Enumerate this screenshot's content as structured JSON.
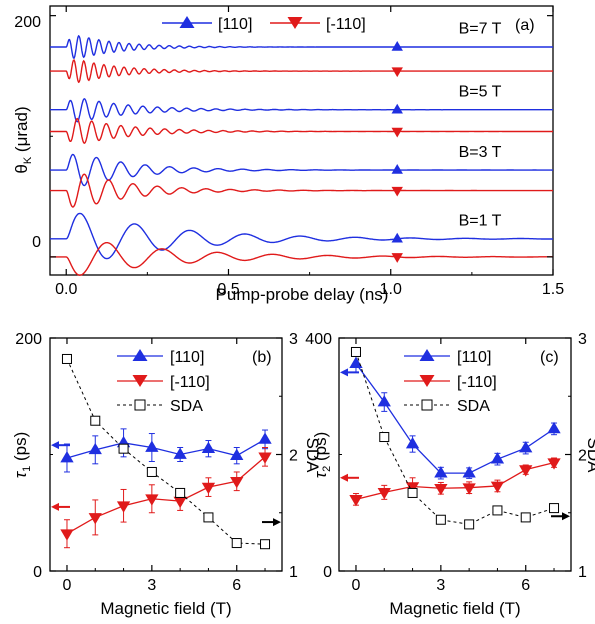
{
  "colors": {
    "blue": "#1f2fe0",
    "red": "#e01a1a",
    "black": "#000000"
  },
  "chart_data": [
    {
      "panel": "(a)",
      "type": "line",
      "xlabel": "Pump-probe delay (ns)",
      "ylabel": "θK (μrad)",
      "ylabel_main": "θ",
      "ylabel_sub": "K",
      "ylabel_unit": " (μrad)",
      "xlim": [
        -0.05,
        1.5
      ],
      "ylim": [
        -15,
        208
      ],
      "xticks": [
        0.0,
        0.5,
        1.0,
        1.5
      ],
      "xtick_labels": [
        "0.0",
        "0.5",
        "1.0",
        "1.5"
      ],
      "yticks": [
        0,
        200
      ],
      "ytick_labels": [
        "0",
        "200"
      ],
      "legend": [
        {
          "label": "[110]",
          "color": "#1f2fe0",
          "marker": "triangle-up"
        },
        {
          "label": "[-110]",
          "color": "#e01a1a",
          "marker": "triangle-down"
        }
      ],
      "traces": [
        {
          "field": "B=7 T",
          "period_ns": 0.031,
          "decay_ns": 0.13,
          "blue": {
            "offset": 174,
            "amp": 13
          },
          "red": {
            "offset": 154,
            "amp": 13
          },
          "label_y": 190
        },
        {
          "field": "B=5 T",
          "period_ns": 0.045,
          "decay_ns": 0.16,
          "blue": {
            "offset": 122,
            "amp": 13
          },
          "red": {
            "offset": 104,
            "amp": 14
          },
          "label_y": 138
        },
        {
          "field": "B=3 T",
          "period_ns": 0.075,
          "decay_ns": 0.17,
          "blue": {
            "offset": 72,
            "amp": 18
          },
          "red": {
            "offset": 55,
            "amp": 19
          },
          "label_y": 88
        },
        {
          "field": "B=1 T",
          "period_ns": 0.17,
          "decay_ns": 0.3,
          "blue": {
            "offset": 15,
            "amp": 25
          },
          "red": {
            "offset": 0,
            "amp": 18
          },
          "label_y": 31
        }
      ],
      "marker_x": 1.02
    },
    {
      "panel": "(b)",
      "type": "line",
      "xlabel": "Magnetic field (T)",
      "ylabel": "τ1 (ps)",
      "ylabel_main": "τ",
      "ylabel_sub": "1",
      "ylabel_unit": " (ps)",
      "y2label": "SDA",
      "xlim": [
        -0.6,
        7.6
      ],
      "ylim": [
        0,
        200
      ],
      "y2lim": [
        1,
        3
      ],
      "xticks": [
        0,
        3,
        6
      ],
      "yticks": [
        0,
        200
      ],
      "y2ticks": [
        1,
        2,
        3
      ],
      "x": [
        0,
        1,
        2,
        3,
        4,
        5,
        6,
        7
      ],
      "series": [
        {
          "name": "[110]",
          "axis": "left",
          "color": "#1f2fe0",
          "marker": "triangle-up",
          "values": [
            97,
            104,
            110,
            106,
            100,
            105,
            99,
            113
          ],
          "errors": [
            12,
            12,
            12,
            12,
            6,
            7,
            7,
            8
          ]
        },
        {
          "name": "[-110]",
          "axis": "left",
          "color": "#e01a1a",
          "marker": "triangle-down",
          "values": [
            32,
            46,
            56,
            62,
            60,
            72,
            77,
            98
          ],
          "errors": [
            12,
            15,
            14,
            12,
            8,
            8,
            8,
            8
          ]
        },
        {
          "name": "SDA",
          "axis": "right",
          "color": "#000000",
          "marker": "open-square",
          "dashed": true,
          "values": [
            2.82,
            2.29,
            2.05,
            1.85,
            1.67,
            1.46,
            1.24,
            1.23
          ]
        }
      ],
      "arrows": [
        {
          "axis": "left",
          "y": 108,
          "color": "#1f2fe0",
          "dir": "left"
        },
        {
          "axis": "left",
          "y": 55,
          "color": "#e01a1a",
          "dir": "left"
        },
        {
          "axis": "right",
          "y": 1.42,
          "color": "#000000",
          "dir": "right"
        }
      ]
    },
    {
      "panel": "(c)",
      "type": "line",
      "xlabel": "Magnetic field (T)",
      "ylabel": "τ2 (ps)",
      "ylabel_main": "τ",
      "ylabel_sub": "2",
      "ylabel_unit": " (ps)",
      "y2label": "SDA",
      "xlim": [
        -0.6,
        7.6
      ],
      "ylim": [
        0,
        400
      ],
      "y2lim": [
        1,
        3
      ],
      "xticks": [
        0,
        3,
        6
      ],
      "yticks": [
        0,
        400
      ],
      "y2ticks": [
        1,
        2,
        3
      ],
      "x": [
        0,
        1,
        2,
        3,
        4,
        5,
        6,
        7
      ],
      "series": [
        {
          "name": "[110]",
          "axis": "left",
          "color": "#1f2fe0",
          "marker": "triangle-up",
          "values": [
            356,
            290,
            218,
            168,
            168,
            192,
            211,
            244
          ],
          "errors": [
            15,
            16,
            14,
            10,
            9,
            10,
            10,
            10
          ]
        },
        {
          "name": "[-110]",
          "axis": "left",
          "color": "#e01a1a",
          "marker": "triangle-down",
          "values": [
            123,
            135,
            145,
            142,
            143,
            146,
            174,
            186
          ],
          "errors": [
            10,
            12,
            15,
            10,
            10,
            10,
            8,
            8
          ]
        },
        {
          "name": "SDA",
          "axis": "right",
          "color": "#000000",
          "marker": "open-square",
          "dashed": true,
          "values": [
            2.88,
            2.15,
            1.67,
            1.44,
            1.4,
            1.52,
            1.46,
            1.54
          ]
        }
      ],
      "arrows": [
        {
          "axis": "left",
          "y": 341,
          "color": "#1f2fe0",
          "dir": "left"
        },
        {
          "axis": "left",
          "y": 160,
          "color": "#e01a1a",
          "dir": "left"
        },
        {
          "axis": "right",
          "y": 1.47,
          "color": "#000000",
          "dir": "right"
        }
      ]
    }
  ]
}
